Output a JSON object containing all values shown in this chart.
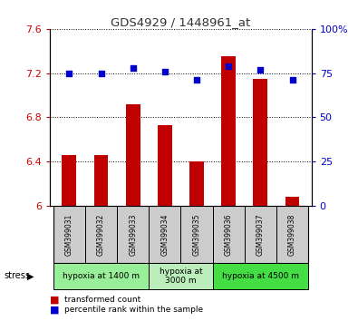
{
  "title": "GDS4929 / 1448961_at",
  "samples": [
    "GSM399031",
    "GSM399032",
    "GSM399033",
    "GSM399034",
    "GSM399035",
    "GSM399036",
    "GSM399037",
    "GSM399038"
  ],
  "bar_values": [
    6.46,
    6.46,
    6.92,
    6.73,
    6.4,
    7.35,
    7.15,
    6.08
  ],
  "dot_values": [
    75,
    75,
    78,
    76,
    71,
    79,
    77,
    71
  ],
  "ylim_left": [
    6.0,
    7.6
  ],
  "ylim_right": [
    0,
    100
  ],
  "yticks_left": [
    6.0,
    6.4,
    6.8,
    7.2,
    7.6
  ],
  "ytick_labels_left": [
    "6",
    "6.4",
    "6.8",
    "7.2",
    "7.6"
  ],
  "yticks_right": [
    0,
    25,
    50,
    75,
    100
  ],
  "ytick_labels_right": [
    "0",
    "25",
    "50",
    "75",
    "100%"
  ],
  "bar_color": "#C00000",
  "dot_color": "#0000CC",
  "grid_color": "#000000",
  "groups": [
    {
      "label": "hypoxia at 1400 m",
      "start": 0,
      "end": 3,
      "color": "#99EE99"
    },
    {
      "label": "hypoxia at\n3000 m",
      "start": 3,
      "end": 5,
      "color": "#BBEEBB"
    },
    {
      "label": "hypoxia at 4500 m",
      "start": 5,
      "end": 8,
      "color": "#44DD44"
    }
  ],
  "stress_label": "stress",
  "legend_bar_label": "transformed count",
  "legend_dot_label": "percentile rank within the sample",
  "bg_color": "#FFFFFF",
  "tick_label_color_left": "#CC0000",
  "tick_label_color_right": "#0000CC",
  "sample_bg_color": "#CCCCCC",
  "bar_width": 0.45
}
